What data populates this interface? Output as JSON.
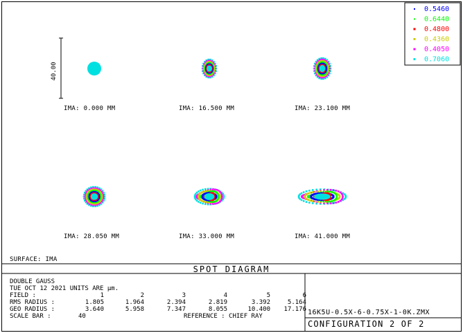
{
  "legend": [
    {
      "wavelength": "0.5460",
      "color": "#0000ff",
      "icon": "dot-icon"
    },
    {
      "wavelength": "0.6440",
      "color": "#00ff00",
      "icon": "dot-icon"
    },
    {
      "wavelength": "0.4800",
      "color": "#ff0000",
      "icon": "square-icon"
    },
    {
      "wavelength": "0.4360",
      "color": "#cccc00",
      "icon": "square-icon"
    },
    {
      "wavelength": "0.4050",
      "color": "#ff00ff",
      "icon": "square-icon"
    },
    {
      "wavelength": "0.7060",
      "color": "#00e0e0",
      "icon": "square-icon"
    }
  ],
  "scale_label": "40.00",
  "fields": [
    {
      "ima": "IMA: 0.000 MM",
      "spread": 0
    },
    {
      "ima": "IMA: 16.500 MM",
      "spread": 1
    },
    {
      "ima": "IMA: 23.100 MM",
      "spread": 2
    },
    {
      "ima": "IMA: 28.050 MM",
      "spread": 3
    },
    {
      "ima": "IMA: 33.000 MM",
      "spread": 4
    },
    {
      "ima": "IMA: 41.000 MM",
      "spread": 5
    }
  ],
  "surface": "SURFACE: IMA",
  "title": "SPOT DIAGRAM",
  "info": {
    "lens": "DOUBLE GAUSS",
    "date_units": "TUE OCT 12 2021   UNITS ARE µm.",
    "field_label": "FIELD       :",
    "field_values": [
      "1",
      "2",
      "3",
      "4",
      "5",
      "6"
    ],
    "rms_label": "RMS RADIUS :",
    "rms_values": [
      "1.805",
      "1.964",
      "2.394",
      "2.819",
      "3.392",
      "5.164"
    ],
    "geo_label": "GEO RADIUS :",
    "geo_values": [
      "3.640",
      "5.958",
      "7.347",
      "8.055",
      "10.400",
      "17.176"
    ],
    "scale_bar_label": "SCALE BAR   :",
    "scale_bar_value": "40",
    "reference": "REFERENCE   : CHIEF RAY"
  },
  "file_name": "16K5U-0.5X-6-0.75X-1-0K.ZMX",
  "configuration": "CONFIGURATION 2 OF 2"
}
